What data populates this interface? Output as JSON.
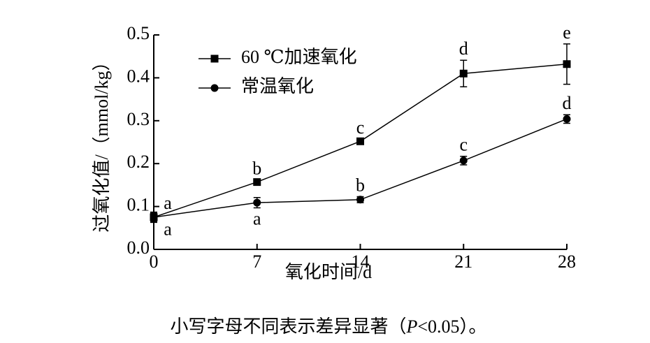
{
  "chart_data": {
    "type": "line",
    "x_label": "氧化时间/d",
    "y_label": "过氧化值/（mmol/kg）",
    "caption": [
      "小写字母不同表示差异显著（",
      "P",
      "<0.05）。"
    ],
    "x": [
      0,
      7,
      14,
      21,
      28
    ],
    "xlim": [
      0,
      28
    ],
    "xticks": [
      0,
      7,
      14,
      21,
      28
    ],
    "ylim": [
      0,
      0.5
    ],
    "yticks": [
      {
        "value": 0,
        "label": "0.0"
      },
      0.1,
      0.2,
      0.3,
      0.4,
      0.5
    ],
    "legend": "upper left",
    "series": [
      {
        "name": "60 ℃加速氧化",
        "color": "#000000",
        "marker": "square",
        "values": [
          0.075,
          0.157,
          0.252,
          0.41,
          0.432
        ],
        "errors": [
          0.01,
          0.005,
          0.005,
          0.031,
          0.047
        ],
        "letters": [
          "a",
          "b",
          "c",
          "d",
          "e"
        ]
      },
      {
        "name": "常温氧化",
        "color": "#000000",
        "marker": "circle",
        "values": [
          0.075,
          0.109,
          0.116,
          0.207,
          0.304
        ],
        "errors": [
          0.012,
          0.012,
          0.007,
          0.01,
          0.01
        ],
        "letters": [
          "a",
          "a",
          "b",
          "c",
          "d"
        ]
      }
    ]
  }
}
